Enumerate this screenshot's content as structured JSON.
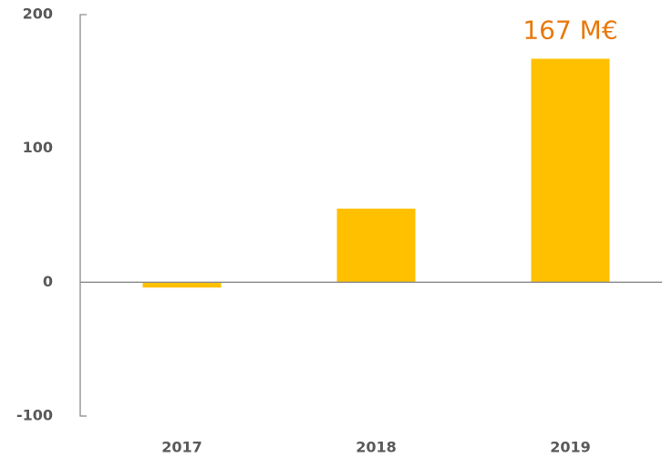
{
  "chart_data": {
    "type": "bar",
    "categories": [
      "2017",
      "2018",
      "2019"
    ],
    "values": [
      -4,
      55,
      167
    ],
    "value_labels": [
      null,
      null,
      "167 M€"
    ],
    "color": "#ffc000",
    "label_color": "#e8790c",
    "ylim": [
      -100,
      200
    ],
    "yticks": [
      -100,
      0,
      100,
      200
    ],
    "grid": false
  }
}
